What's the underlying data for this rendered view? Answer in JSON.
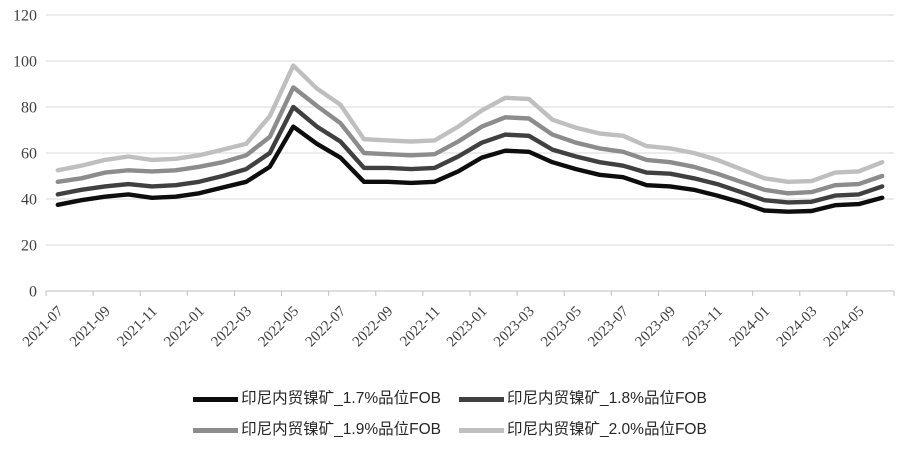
{
  "chart_data": {
    "type": "line",
    "title": "",
    "xlabel": "",
    "ylabel": "",
    "ylim": [
      0,
      120
    ],
    "yticks": [
      0,
      20,
      40,
      60,
      80,
      100,
      120
    ],
    "grid": true,
    "legend_position": "bottom",
    "x": [
      "2021-07",
      "2021-08",
      "2021-09",
      "2021-10",
      "2021-11",
      "2021-12",
      "2022-01",
      "2022-02",
      "2022-03",
      "2022-04",
      "2022-05",
      "2022-06",
      "2022-07",
      "2022-08",
      "2022-09",
      "2022-10",
      "2022-11",
      "2022-12",
      "2023-01",
      "2023-02",
      "2023-03",
      "2023-04",
      "2023-05",
      "2023-06",
      "2023-07",
      "2023-08",
      "2023-09",
      "2023-10",
      "2023-11",
      "2023-12",
      "2024-01",
      "2024-02",
      "2024-03",
      "2024-04",
      "2024-05",
      "2024-06"
    ],
    "x_tick_labels": [
      "2021-07",
      "2021-09",
      "2021-11",
      "2022-01",
      "2022-03",
      "2022-05",
      "2022-07",
      "2022-09",
      "2022-11",
      "2023-01",
      "2023-03",
      "2023-05",
      "2023-07",
      "2023-09",
      "2023-11",
      "2024-01",
      "2024-03",
      "2024-05"
    ],
    "series": [
      {
        "name": "印尼内贸镍矿_1.7%品位FOB",
        "color": "#0d0d0d",
        "values": [
          37.5,
          39.5,
          41,
          42,
          40.5,
          41,
          42.5,
          45,
          47.5,
          54,
          71.5,
          64,
          58,
          47.5,
          47.5,
          47,
          47.5,
          52,
          58,
          61,
          60.5,
          56,
          53,
          50.5,
          49.5,
          46,
          45.5,
          44,
          41.5,
          38.5,
          35,
          34.5,
          34.8,
          37.3,
          37.8,
          40.5
        ]
      },
      {
        "name": "印尼内贸镍矿_1.8%品位FOB",
        "color": "#404040",
        "values": [
          42,
          44,
          45.5,
          46.5,
          45.5,
          46,
          47.5,
          50,
          53,
          60,
          80,
          71.5,
          65,
          53.5,
          53.5,
          53,
          53.5,
          58.5,
          64.5,
          68,
          67.5,
          61.5,
          58.5,
          56,
          54.5,
          51.5,
          51,
          49,
          46.5,
          43,
          39.5,
          38.5,
          38.8,
          41.5,
          42,
          45.5
        ]
      },
      {
        "name": "印尼内贸镍矿_1.9%品位FOB",
        "color": "#8c8c8c",
        "values": [
          47.5,
          49,
          51.5,
          52.5,
          52,
          52.5,
          54,
          56,
          59,
          67,
          88.5,
          80.5,
          73,
          60,
          59.5,
          59,
          59.5,
          65,
          71.5,
          75.5,
          75,
          68,
          64.5,
          62,
          60.5,
          57,
          56,
          54,
          51,
          47.5,
          44,
          42.5,
          43,
          46,
          46.5,
          50
        ]
      },
      {
        "name": "印尼内贸镍矿_2.0%品位FOB",
        "color": "#bfbfbf",
        "values": [
          52.5,
          54.5,
          57,
          58.5,
          57,
          57.5,
          59,
          61.5,
          64,
          76,
          98,
          88,
          81,
          66,
          65.5,
          65,
          65.5,
          71.5,
          78.5,
          84,
          83.5,
          74.5,
          71,
          68.5,
          67.5,
          63,
          62,
          60,
          57,
          53,
          49,
          47.5,
          47.8,
          51.5,
          52,
          56
        ]
      }
    ],
    "colors": {
      "gridline": "#d9d9d9",
      "axis": "#bfbfbf",
      "tick_label": "#404040"
    },
    "line_width": 4.4
  }
}
